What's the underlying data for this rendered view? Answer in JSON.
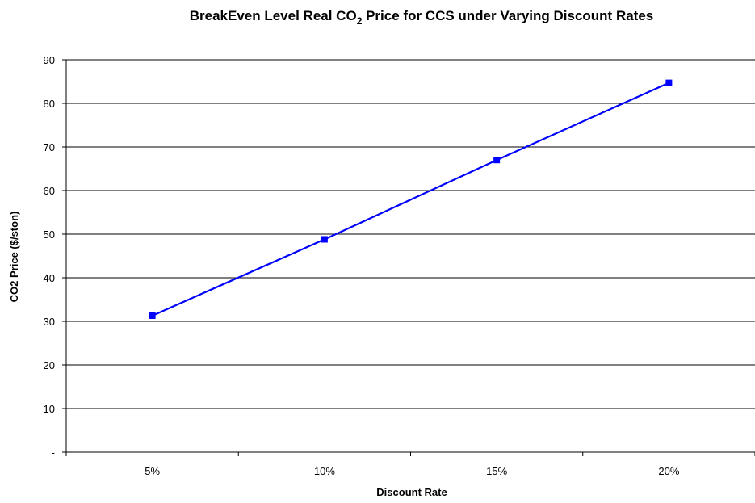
{
  "chart_data": {
    "type": "line",
    "title_main": "BreakEven Level Real CO",
    "title_sub": "2",
    "title_rest": " Price for CCS under Varying Discount Rates",
    "xlabel": "Discount Rate",
    "ylabel": "CO2 Price ($/ston)",
    "categories": [
      "5%",
      "10%",
      "15%",
      "20%"
    ],
    "series": [
      {
        "values": [
          31.3,
          48.8,
          67.0,
          84.7
        ],
        "color": "#0000ff"
      }
    ],
    "ylim": [
      0,
      90
    ],
    "yticks": [
      0,
      10,
      20,
      30,
      40,
      50,
      60,
      70,
      80,
      90
    ],
    "ytick_labels": [
      "-",
      "10",
      "20",
      "30",
      "40",
      "50",
      "60",
      "70",
      "80",
      "90"
    ],
    "grid": true,
    "legend": "none"
  }
}
